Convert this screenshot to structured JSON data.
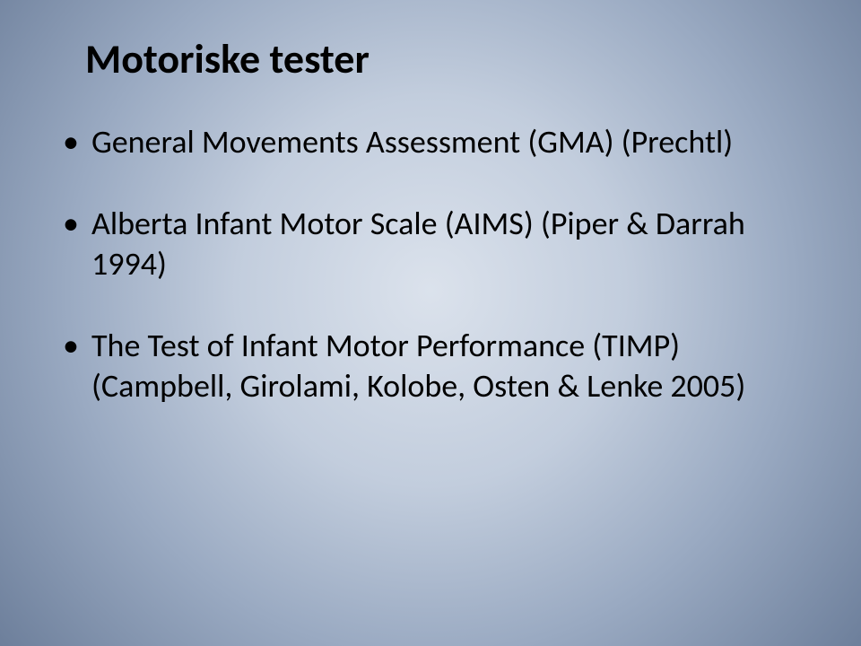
{
  "slide": {
    "background": {
      "type": "radial-gradient",
      "center_color": "#dbe2ec",
      "mid_color": "#9aaac2",
      "edge_color": "#6d7f9b"
    },
    "title": {
      "text": "Motoriske tester",
      "fontsize": 46,
      "fontweight": 700,
      "color": "#000000"
    },
    "bullets": {
      "fontsize": 36,
      "color": "#000000",
      "bullet_color": "#000000",
      "items": [
        "General Movements Assessment (GMA) (Prechtl)",
        "Alberta Infant Motor Scale (AIMS) (Piper & Darrah 1994)",
        "The Test of Infant Motor Performance (TIMP) (Campbell, Girolami, Kolobe, Osten & Lenke 2005)"
      ]
    }
  }
}
